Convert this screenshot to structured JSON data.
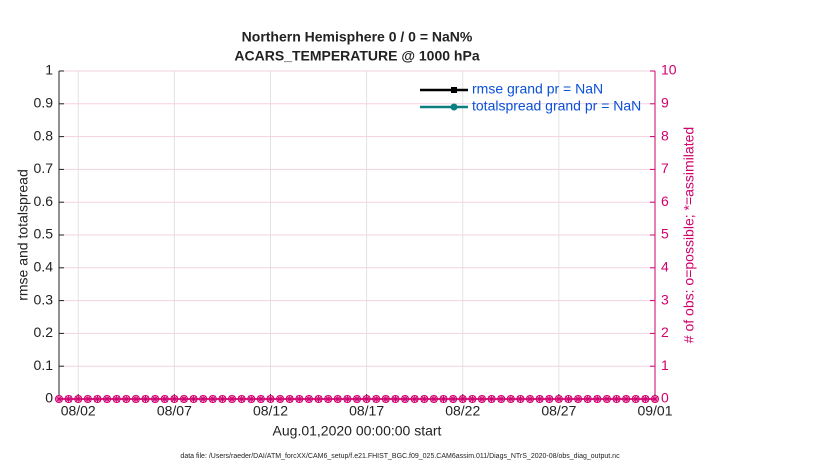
{
  "chart_data": {
    "type": "line",
    "title": "Northern Hemisphere 0 / 0 = NaN%",
    "subtitle": "ACARS_TEMPERATURE @ 1000 hPa",
    "x_label": "Aug.01,2020 00:00:00 start",
    "y_label": "rmse and totalspread",
    "y2_label": "# of obs: o=possible; *=assimilated",
    "footnote": "data file: /Users/raeder/DAI/ATM_forcXX/CAM6_setup/f.e21.FHIST_BGC.f09_025.CAM6assim.011/Diags_NTrS_2020-08/obs_diag_output.nc",
    "x": [
      0,
      0.5,
      1,
      1.5,
      2,
      2.5,
      3,
      3.5,
      4,
      4.5,
      5,
      5.5,
      6,
      6.5,
      7,
      7.5,
      8,
      8.5,
      9,
      9.5,
      10,
      10.5,
      11,
      11.5,
      12,
      12.5,
      13,
      13.5,
      14,
      14.5,
      15,
      15.5,
      16,
      16.5,
      17,
      17.5,
      18,
      18.5,
      19,
      19.5,
      20,
      20.5,
      21,
      21.5,
      22,
      22.5,
      23,
      23.5,
      24,
      24.5,
      25,
      25.5,
      26,
      26.5,
      27,
      27.5,
      28,
      28.5,
      29,
      29.5,
      30,
      30.5,
      31
    ],
    "xlim": [
      0,
      31
    ],
    "xticks": [
      {
        "value": 1,
        "label": "08/02"
      },
      {
        "value": 6,
        "label": "08/07"
      },
      {
        "value": 11,
        "label": "08/12"
      },
      {
        "value": 16,
        "label": "08/17"
      },
      {
        "value": 21,
        "label": "08/22"
      },
      {
        "value": 26,
        "label": "08/27"
      },
      {
        "value": 31,
        "label": "09/01"
      }
    ],
    "ylim": [
      0,
      1
    ],
    "yticks": [
      0,
      0.1,
      0.2,
      0.3,
      0.4,
      0.5,
      0.6,
      0.7,
      0.8,
      0.9,
      1
    ],
    "y2lim": [
      0,
      10
    ],
    "y2ticks": [
      0,
      1,
      2,
      3,
      4,
      5,
      6,
      7,
      8,
      9,
      10
    ],
    "y2_color": "#d0006f",
    "grid": true,
    "legend": "upper right",
    "legend_text_color": "#0a50d8",
    "series": [
      {
        "name": "rmse grand pr = NaN",
        "color": "#000000",
        "marker": "square",
        "values": [
          null,
          null,
          null,
          null,
          null,
          null,
          null,
          null,
          null,
          null,
          null,
          null,
          null,
          null,
          null,
          null,
          null,
          null,
          null,
          null,
          null,
          null,
          null,
          null,
          null,
          null,
          null,
          null,
          null,
          null,
          null,
          null,
          null,
          null,
          null,
          null,
          null,
          null,
          null,
          null,
          null,
          null,
          null,
          null,
          null,
          null,
          null,
          null,
          null,
          null,
          null,
          null,
          null,
          null,
          null,
          null,
          null,
          null,
          null,
          null,
          null,
          null,
          null
        ]
      },
      {
        "name": "totalspread grand pr = NaN",
        "color": "#0e7f80",
        "marker": "circle",
        "values": [
          null,
          null,
          null,
          null,
          null,
          null,
          null,
          null,
          null,
          null,
          null,
          null,
          null,
          null,
          null,
          null,
          null,
          null,
          null,
          null,
          null,
          null,
          null,
          null,
          null,
          null,
          null,
          null,
          null,
          null,
          null,
          null,
          null,
          null,
          null,
          null,
          null,
          null,
          null,
          null,
          null,
          null,
          null,
          null,
          null,
          null,
          null,
          null,
          null,
          null,
          null,
          null,
          null,
          null,
          null,
          null,
          null,
          null,
          null,
          null,
          null,
          null,
          null
        ]
      },
      {
        "axis": "y2",
        "color": "#d0006f",
        "marker": "o",
        "values": [
          0,
          0,
          0,
          0,
          0,
          0,
          0,
          0,
          0,
          0,
          0,
          0,
          0,
          0,
          0,
          0,
          0,
          0,
          0,
          0,
          0,
          0,
          0,
          0,
          0,
          0,
          0,
          0,
          0,
          0,
          0,
          0,
          0,
          0,
          0,
          0,
          0,
          0,
          0,
          0,
          0,
          0,
          0,
          0,
          0,
          0,
          0,
          0,
          0,
          0,
          0,
          0,
          0,
          0,
          0,
          0,
          0,
          0,
          0,
          0,
          0,
          0,
          0
        ]
      },
      {
        "axis": "y2",
        "color": "#d0006f",
        "marker": "*",
        "values": [
          0,
          0,
          0,
          0,
          0,
          0,
          0,
          0,
          0,
          0,
          0,
          0,
          0,
          0,
          0,
          0,
          0,
          0,
          0,
          0,
          0,
          0,
          0,
          0,
          0,
          0,
          0,
          0,
          0,
          0,
          0,
          0,
          0,
          0,
          0,
          0,
          0,
          0,
          0,
          0,
          0,
          0,
          0,
          0,
          0,
          0,
          0,
          0,
          0,
          0,
          0,
          0,
          0,
          0,
          0,
          0,
          0,
          0,
          0,
          0,
          0,
          0,
          0
        ]
      }
    ]
  }
}
